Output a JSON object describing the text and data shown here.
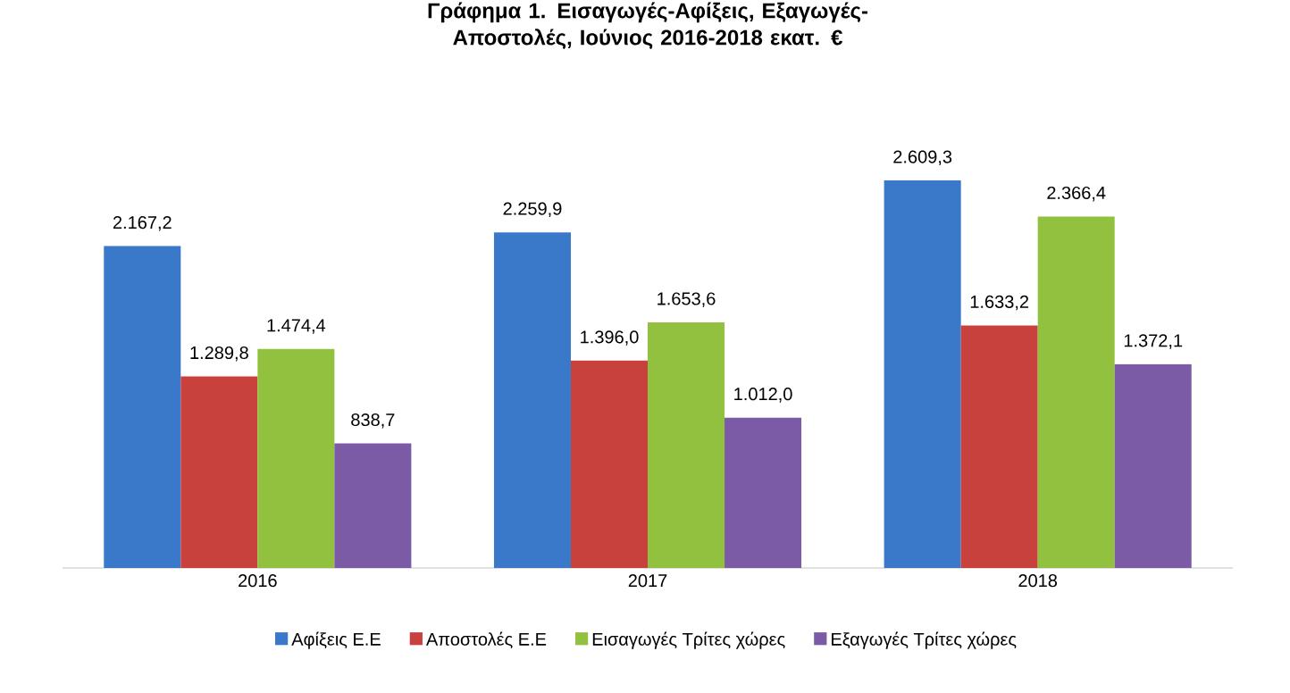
{
  "chart_data": {
    "type": "bar",
    "title": "Γράφημα 1. Εισαγωγές-Αφίξεις, Εξαγωγές-Αποστολές, Ιούνιος 2016-2018 εκατ. €",
    "categories": [
      "2016",
      "2017",
      "2018"
    ],
    "series": [
      {
        "name": "Αφίξεις Ε.Ε",
        "color": "#3a78c9",
        "values": [
          2167.2,
          2259.9,
          2609.3
        ],
        "value_labels": [
          "2.167,2",
          "2.259,9",
          "2.609,3"
        ]
      },
      {
        "name": "Αποστολές Ε.Ε",
        "color": "#c9413d",
        "values": [
          1289.8,
          1396.0,
          1633.2
        ],
        "value_labels": [
          "1.289,8",
          "1.396,0",
          "1.633,2"
        ]
      },
      {
        "name": "Εισαγωγές Τρίτες χώρες",
        "color": "#92c13f",
        "values": [
          1474.4,
          1653.6,
          2366.4
        ],
        "value_labels": [
          "1.474,4",
          "1.653,6",
          "2.366,4"
        ]
      },
      {
        "name": "Εξαγωγές Τρίτες χώρες",
        "color": "#7b5aa6",
        "values": [
          838.7,
          1012.0,
          1372.1
        ],
        "value_labels": [
          "838,7",
          "1.012,0",
          "1.372,1"
        ]
      }
    ],
    "legend": "bottom"
  }
}
